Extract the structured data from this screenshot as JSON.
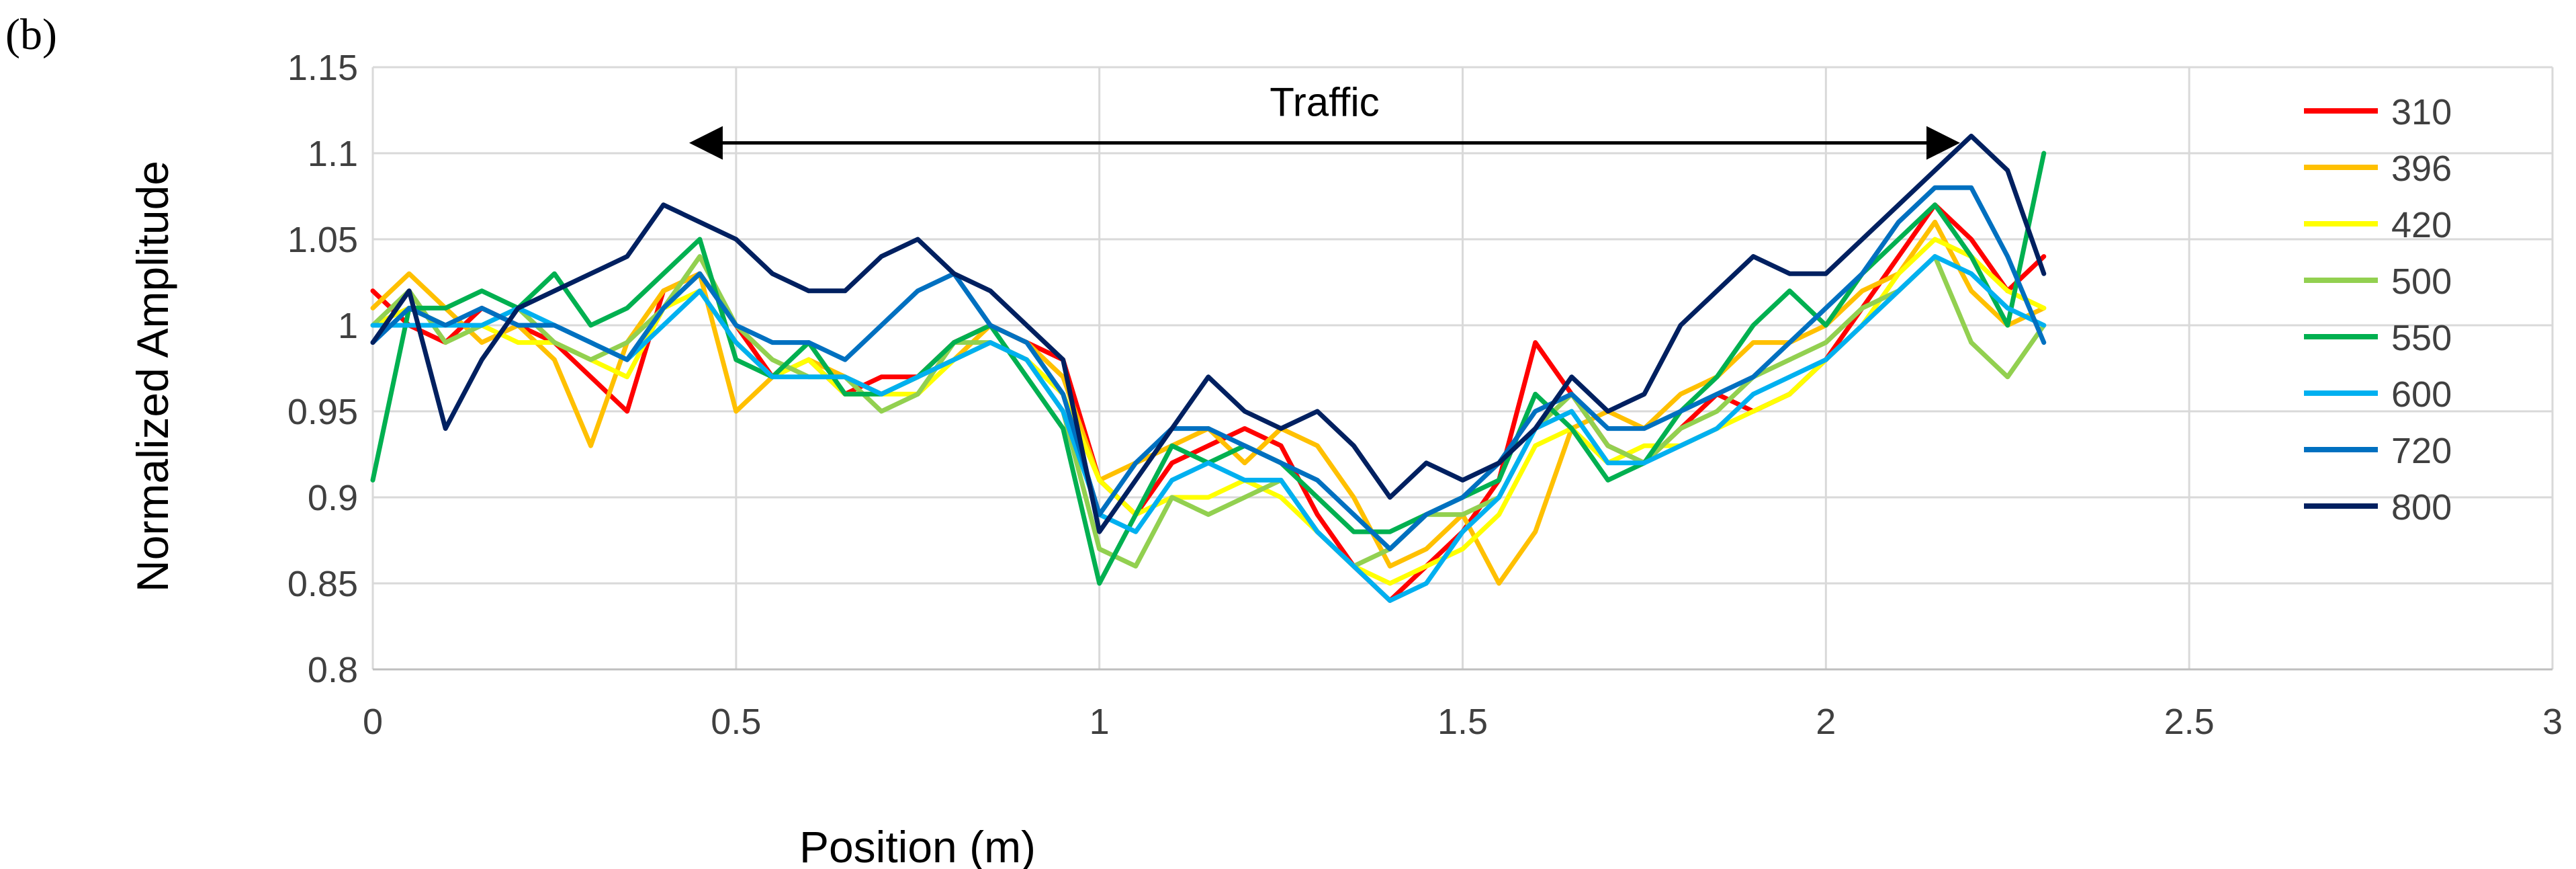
{
  "panel_label": "(b)",
  "chart_data": {
    "type": "line",
    "xlabel": "Position (m)",
    "ylabel": "Normalized Amplitude",
    "xlim": [
      0,
      3
    ],
    "ylim": [
      0.8,
      1.15
    ],
    "xticks": [
      0,
      0.5,
      1,
      1.5,
      2,
      2.5,
      3
    ],
    "xtick_labels": [
      "0",
      "0.5",
      "1",
      "1.5",
      "2",
      "2.5",
      "3"
    ],
    "yticks": [
      0.8,
      0.85,
      0.9,
      0.95,
      1,
      1.05,
      1.1,
      1.15
    ],
    "ytick_labels": [
      "0.8",
      "0.85",
      "0.9",
      "0.95",
      "1",
      "1.05",
      "1.1",
      "1.15"
    ],
    "grid": true,
    "legend_position": "right",
    "annotation": {
      "text": "Traffic",
      "x_start": 0.44,
      "x_end": 2.18,
      "y": 1.106
    },
    "x": [
      0,
      0.05,
      0.1,
      0.15,
      0.2,
      0.25,
      0.3,
      0.35,
      0.4,
      0.45,
      0.5,
      0.55,
      0.6,
      0.65,
      0.7,
      0.75,
      0.8,
      0.85,
      0.9,
      0.95,
      1.0,
      1.05,
      1.1,
      1.15,
      1.2,
      1.25,
      1.3,
      1.35,
      1.4,
      1.45,
      1.5,
      1.55,
      1.6,
      1.65,
      1.7,
      1.75,
      1.8,
      1.85,
      1.9,
      1.95,
      2.0,
      2.05,
      2.1,
      2.15,
      2.2,
      2.25,
      2.3
    ],
    "series": [
      {
        "name": "310",
        "color": "#ff0000",
        "values": [
          1.02,
          1.0,
          0.99,
          1.01,
          1.0,
          0.99,
          0.97,
          0.95,
          1.02,
          1.03,
          1.0,
          0.97,
          0.98,
          0.96,
          0.97,
          0.97,
          0.99,
          1.0,
          0.99,
          0.98,
          0.91,
          0.89,
          0.92,
          0.93,
          0.94,
          0.93,
          0.89,
          0.86,
          0.84,
          0.86,
          0.88,
          0.91,
          0.99,
          0.96,
          0.93,
          0.92,
          0.94,
          0.96,
          0.95,
          0.96,
          0.98,
          1.01,
          1.04,
          1.07,
          1.05,
          1.02,
          1.04
        ]
      },
      {
        "name": "396",
        "color": "#ffc000",
        "values": [
          1.01,
          1.03,
          1.01,
          0.99,
          1.0,
          0.98,
          0.93,
          0.99,
          1.02,
          1.03,
          0.95,
          0.97,
          0.98,
          0.97,
          0.96,
          0.97,
          0.98,
          1.0,
          0.99,
          0.97,
          0.91,
          0.92,
          0.93,
          0.94,
          0.92,
          0.94,
          0.93,
          0.9,
          0.86,
          0.87,
          0.89,
          0.85,
          0.88,
          0.94,
          0.95,
          0.94,
          0.96,
          0.97,
          0.99,
          0.99,
          1.0,
          1.02,
          1.03,
          1.06,
          1.02,
          1.0,
          1.01
        ]
      },
      {
        "name": "420",
        "color": "#ffff00",
        "values": [
          1.0,
          1.01,
          1.0,
          1.0,
          0.99,
          0.99,
          0.98,
          0.97,
          1.01,
          1.02,
          0.99,
          0.97,
          0.98,
          0.96,
          0.96,
          0.96,
          0.98,
          0.99,
          0.98,
          0.96,
          0.91,
          0.89,
          0.9,
          0.9,
          0.91,
          0.9,
          0.88,
          0.86,
          0.85,
          0.86,
          0.87,
          0.89,
          0.93,
          0.94,
          0.92,
          0.93,
          0.93,
          0.94,
          0.95,
          0.96,
          0.98,
          1.0,
          1.03,
          1.05,
          1.04,
          1.02,
          1.01
        ]
      },
      {
        "name": "500",
        "color": "#92d050",
        "values": [
          1.0,
          1.02,
          0.99,
          1.0,
          1.01,
          0.99,
          0.98,
          0.99,
          1.01,
          1.04,
          1.0,
          0.98,
          0.97,
          0.97,
          0.95,
          0.96,
          0.99,
          0.99,
          0.98,
          0.95,
          0.87,
          0.86,
          0.9,
          0.89,
          0.9,
          0.91,
          0.88,
          0.86,
          0.87,
          0.89,
          0.89,
          0.9,
          0.94,
          0.96,
          0.93,
          0.92,
          0.94,
          0.95,
          0.97,
          0.98,
          0.99,
          1.01,
          1.02,
          1.04,
          0.99,
          0.97,
          1.0
        ]
      },
      {
        "name": "550",
        "color": "#00b050",
        "values": [
          0.91,
          1.01,
          1.01,
          1.02,
          1.01,
          1.03,
          1.0,
          1.01,
          1.03,
          1.05,
          0.98,
          0.97,
          0.99,
          0.96,
          0.96,
          0.97,
          0.99,
          1.0,
          0.97,
          0.94,
          0.85,
          0.89,
          0.93,
          0.92,
          0.93,
          0.92,
          0.9,
          0.88,
          0.88,
          0.89,
          0.9,
          0.91,
          0.96,
          0.94,
          0.91,
          0.92,
          0.95,
          0.97,
          1.0,
          1.02,
          1.0,
          1.03,
          1.05,
          1.07,
          1.04,
          1.0,
          1.1
        ]
      },
      {
        "name": "600",
        "color": "#00b0f0",
        "values": [
          1.0,
          1.0,
          1.0,
          1.0,
          1.01,
          1.0,
          0.99,
          0.98,
          1.0,
          1.02,
          0.99,
          0.97,
          0.97,
          0.97,
          0.96,
          0.97,
          0.98,
          0.99,
          0.98,
          0.95,
          0.89,
          0.88,
          0.91,
          0.92,
          0.91,
          0.91,
          0.88,
          0.86,
          0.84,
          0.85,
          0.88,
          0.9,
          0.94,
          0.95,
          0.92,
          0.92,
          0.93,
          0.94,
          0.96,
          0.97,
          0.98,
          1.0,
          1.02,
          1.04,
          1.03,
          1.01,
          1.0
        ]
      },
      {
        "name": "720",
        "color": "#0070c0",
        "values": [
          0.99,
          1.01,
          1.0,
          1.01,
          1.0,
          1.0,
          0.99,
          0.98,
          1.01,
          1.03,
          1.0,
          0.99,
          0.99,
          0.98,
          1.0,
          1.02,
          1.03,
          1.0,
          0.99,
          0.96,
          0.89,
          0.92,
          0.94,
          0.94,
          0.93,
          0.92,
          0.91,
          0.89,
          0.87,
          0.89,
          0.9,
          0.92,
          0.95,
          0.96,
          0.94,
          0.94,
          0.95,
          0.96,
          0.97,
          0.99,
          1.01,
          1.03,
          1.06,
          1.08,
          1.08,
          1.04,
          0.99
        ]
      },
      {
        "name": "800",
        "color": "#002060",
        "values": [
          0.99,
          1.02,
          0.94,
          0.98,
          1.01,
          1.02,
          1.03,
          1.04,
          1.07,
          1.06,
          1.05,
          1.03,
          1.02,
          1.02,
          1.04,
          1.05,
          1.03,
          1.02,
          1.0,
          0.98,
          0.88,
          0.91,
          0.94,
          0.97,
          0.95,
          0.94,
          0.95,
          0.93,
          0.9,
          0.92,
          0.91,
          0.92,
          0.94,
          0.97,
          0.95,
          0.96,
          1.0,
          1.02,
          1.04,
          1.03,
          1.03,
          1.05,
          1.07,
          1.09,
          1.11,
          1.09,
          1.03
        ]
      }
    ]
  }
}
